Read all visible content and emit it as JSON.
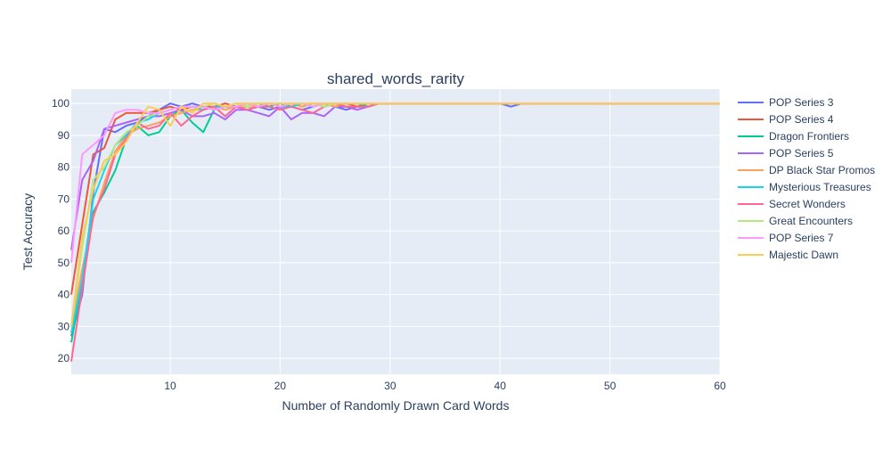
{
  "chart_data": {
    "type": "line",
    "title": "shared_words_rarity",
    "xlabel": "Number of Randomly Drawn Card Words",
    "ylabel": "Test Accuracy",
    "xlim": [
      1,
      60
    ],
    "ylim": [
      15,
      104.5
    ],
    "x_ticks": [
      10,
      20,
      30,
      40,
      50,
      60
    ],
    "y_ticks": [
      20,
      30,
      40,
      50,
      60,
      70,
      80,
      90,
      100
    ],
    "grid": true,
    "legend_position": "right",
    "plot_background": "#e5ecf6",
    "series": [
      {
        "name": "POP Series 3",
        "color": "#636efa",
        "x": [
          1,
          2,
          3,
          4,
          5,
          6,
          7,
          8,
          9,
          10,
          11,
          12,
          13,
          14,
          15,
          16,
          17,
          18,
          19,
          20,
          21,
          22,
          23,
          24,
          25,
          26,
          27,
          28,
          29,
          30,
          40,
          41,
          42,
          60
        ],
        "y": [
          27,
          40,
          72,
          92,
          91,
          93,
          94,
          96,
          98,
          100,
          99,
          100,
          99,
          98,
          99,
          99,
          98,
          99,
          98,
          99,
          99,
          98,
          99,
          100,
          99,
          98,
          99,
          99,
          100,
          100,
          100,
          99,
          100,
          100
        ]
      },
      {
        "name": "POP Series 4",
        "color": "#EF553B",
        "x": [
          1,
          2,
          3,
          4,
          5,
          6,
          7,
          8,
          9,
          10,
          11,
          12,
          13,
          14,
          15,
          16,
          17,
          18,
          19,
          20,
          21,
          22,
          23,
          24,
          25,
          26,
          27,
          28,
          29,
          30,
          60
        ],
        "y": [
          40,
          62,
          84,
          86,
          95,
          97,
          97,
          97,
          98,
          99,
          98,
          99,
          99,
          99,
          100,
          99,
          100,
          99,
          100,
          99,
          100,
          99,
          100,
          99,
          100,
          100,
          99,
          100,
          100,
          100,
          100
        ]
      },
      {
        "name": "Dragon Frontiers",
        "color": "#00cc96",
        "x": [
          1,
          2,
          3,
          4,
          5,
          6,
          7,
          8,
          9,
          10,
          11,
          12,
          13,
          14,
          15,
          16,
          17,
          18,
          19,
          20,
          21,
          22,
          23,
          24,
          25,
          26,
          27,
          28,
          29,
          30,
          60
        ],
        "y": [
          25,
          44,
          66,
          72,
          79,
          89,
          93,
          90,
          91,
          96,
          98,
          94,
          91,
          98,
          99,
          99,
          99,
          100,
          99,
          100,
          99,
          100,
          99,
          100,
          99,
          100,
          100,
          99,
          100,
          100,
          100
        ]
      },
      {
        "name": "POP Series 5",
        "color": "#ab63fa",
        "x": [
          1,
          2,
          3,
          4,
          5,
          6,
          7,
          8,
          9,
          10,
          11,
          12,
          13,
          14,
          15,
          16,
          17,
          18,
          19,
          20,
          21,
          22,
          23,
          24,
          25,
          26,
          27,
          28,
          29,
          30,
          60
        ],
        "y": [
          54,
          76,
          82,
          92,
          93,
          94,
          95,
          96,
          96,
          97,
          98,
          96,
          96,
          97,
          95,
          98,
          98,
          97,
          96,
          99,
          95,
          97,
          97,
          96,
          99,
          99,
          98,
          99,
          100,
          100,
          100
        ]
      },
      {
        "name": "DP Black Star Promos",
        "color": "#FFA15A",
        "x": [
          1,
          2,
          3,
          4,
          5,
          6,
          7,
          8,
          9,
          10,
          11,
          12,
          13,
          14,
          15,
          16,
          17,
          18,
          19,
          20,
          21,
          22,
          23,
          24,
          25,
          26,
          27,
          28,
          29,
          30,
          60
        ],
        "y": [
          30,
          48,
          64,
          75,
          85,
          90,
          92,
          93,
          94,
          96,
          97,
          98,
          98,
          99,
          98,
          99,
          99,
          99,
          100,
          99,
          100,
          99,
          100,
          100,
          99,
          100,
          100,
          100,
          100,
          100,
          100
        ]
      },
      {
        "name": "Mysterious Treasures",
        "color": "#19d3f3",
        "x": [
          1,
          2,
          3,
          4,
          5,
          6,
          7,
          8,
          9,
          10,
          11,
          12,
          13,
          14,
          15,
          16,
          17,
          18,
          19,
          20,
          21,
          22,
          23,
          24,
          25,
          26,
          27,
          28,
          29,
          30,
          60
        ],
        "y": [
          28,
          45,
          70,
          79,
          87,
          90,
          94,
          95,
          97,
          98,
          99,
          99,
          98,
          99,
          99,
          99,
          100,
          99,
          100,
          99,
          99,
          100,
          99,
          100,
          100,
          100,
          100,
          100,
          100,
          100,
          100
        ]
      },
      {
        "name": "Secret Wonders",
        "color": "#FF6692",
        "x": [
          1,
          2,
          3,
          4,
          5,
          6,
          7,
          8,
          9,
          10,
          11,
          12,
          13,
          14,
          15,
          16,
          17,
          18,
          19,
          20,
          21,
          22,
          23,
          24,
          25,
          26,
          27,
          28,
          29,
          30,
          60
        ],
        "y": [
          19,
          42,
          65,
          73,
          84,
          89,
          94,
          92,
          93,
          97,
          93,
          96,
          98,
          99,
          96,
          99,
          98,
          99,
          99,
          98,
          99,
          98,
          97,
          99,
          100,
          99,
          99,
          99,
          100,
          100,
          100
        ]
      },
      {
        "name": "Great Encounters",
        "color": "#B6E880",
        "x": [
          1,
          2,
          3,
          4,
          5,
          6,
          7,
          8,
          9,
          10,
          11,
          12,
          13,
          14,
          15,
          16,
          17,
          18,
          19,
          20,
          21,
          22,
          23,
          24,
          25,
          26,
          27,
          28,
          29,
          30,
          60
        ],
        "y": [
          30,
          55,
          76,
          80,
          87,
          91,
          93,
          96,
          97,
          98,
          99,
          99,
          99,
          100,
          99,
          100,
          99,
          100,
          100,
          99,
          100,
          100,
          100,
          99,
          100,
          100,
          100,
          100,
          100,
          100,
          100
        ]
      },
      {
        "name": "POP Series 7",
        "color": "#FF97FF",
        "x": [
          1,
          2,
          3,
          4,
          5,
          6,
          7,
          8,
          9,
          10,
          11,
          12,
          13,
          14,
          15,
          16,
          17,
          18,
          19,
          20,
          21,
          22,
          23,
          24,
          25,
          26,
          27,
          28,
          29,
          30,
          60
        ],
        "y": [
          50,
          84,
          87,
          90,
          97,
          98,
          98,
          97,
          97,
          98,
          99,
          99,
          99,
          98,
          99,
          99,
          100,
          99,
          100,
          99,
          100,
          100,
          99,
          100,
          100,
          100,
          100,
          100,
          100,
          100,
          100
        ]
      },
      {
        "name": "Majestic Dawn",
        "color": "#FECB52",
        "x": [
          1,
          2,
          3,
          4,
          5,
          6,
          7,
          8,
          9,
          10,
          11,
          12,
          13,
          14,
          15,
          16,
          17,
          18,
          19,
          20,
          21,
          22,
          23,
          24,
          25,
          26,
          27,
          28,
          29,
          30,
          60
        ],
        "y": [
          30,
          58,
          73,
          82,
          84,
          88,
          94,
          99,
          98,
          93,
          99,
          97,
          100,
          100,
          99,
          100,
          100,
          100,
          100,
          100,
          100,
          100,
          100,
          100,
          100,
          100,
          100,
          100,
          100,
          100,
          100
        ]
      }
    ]
  }
}
